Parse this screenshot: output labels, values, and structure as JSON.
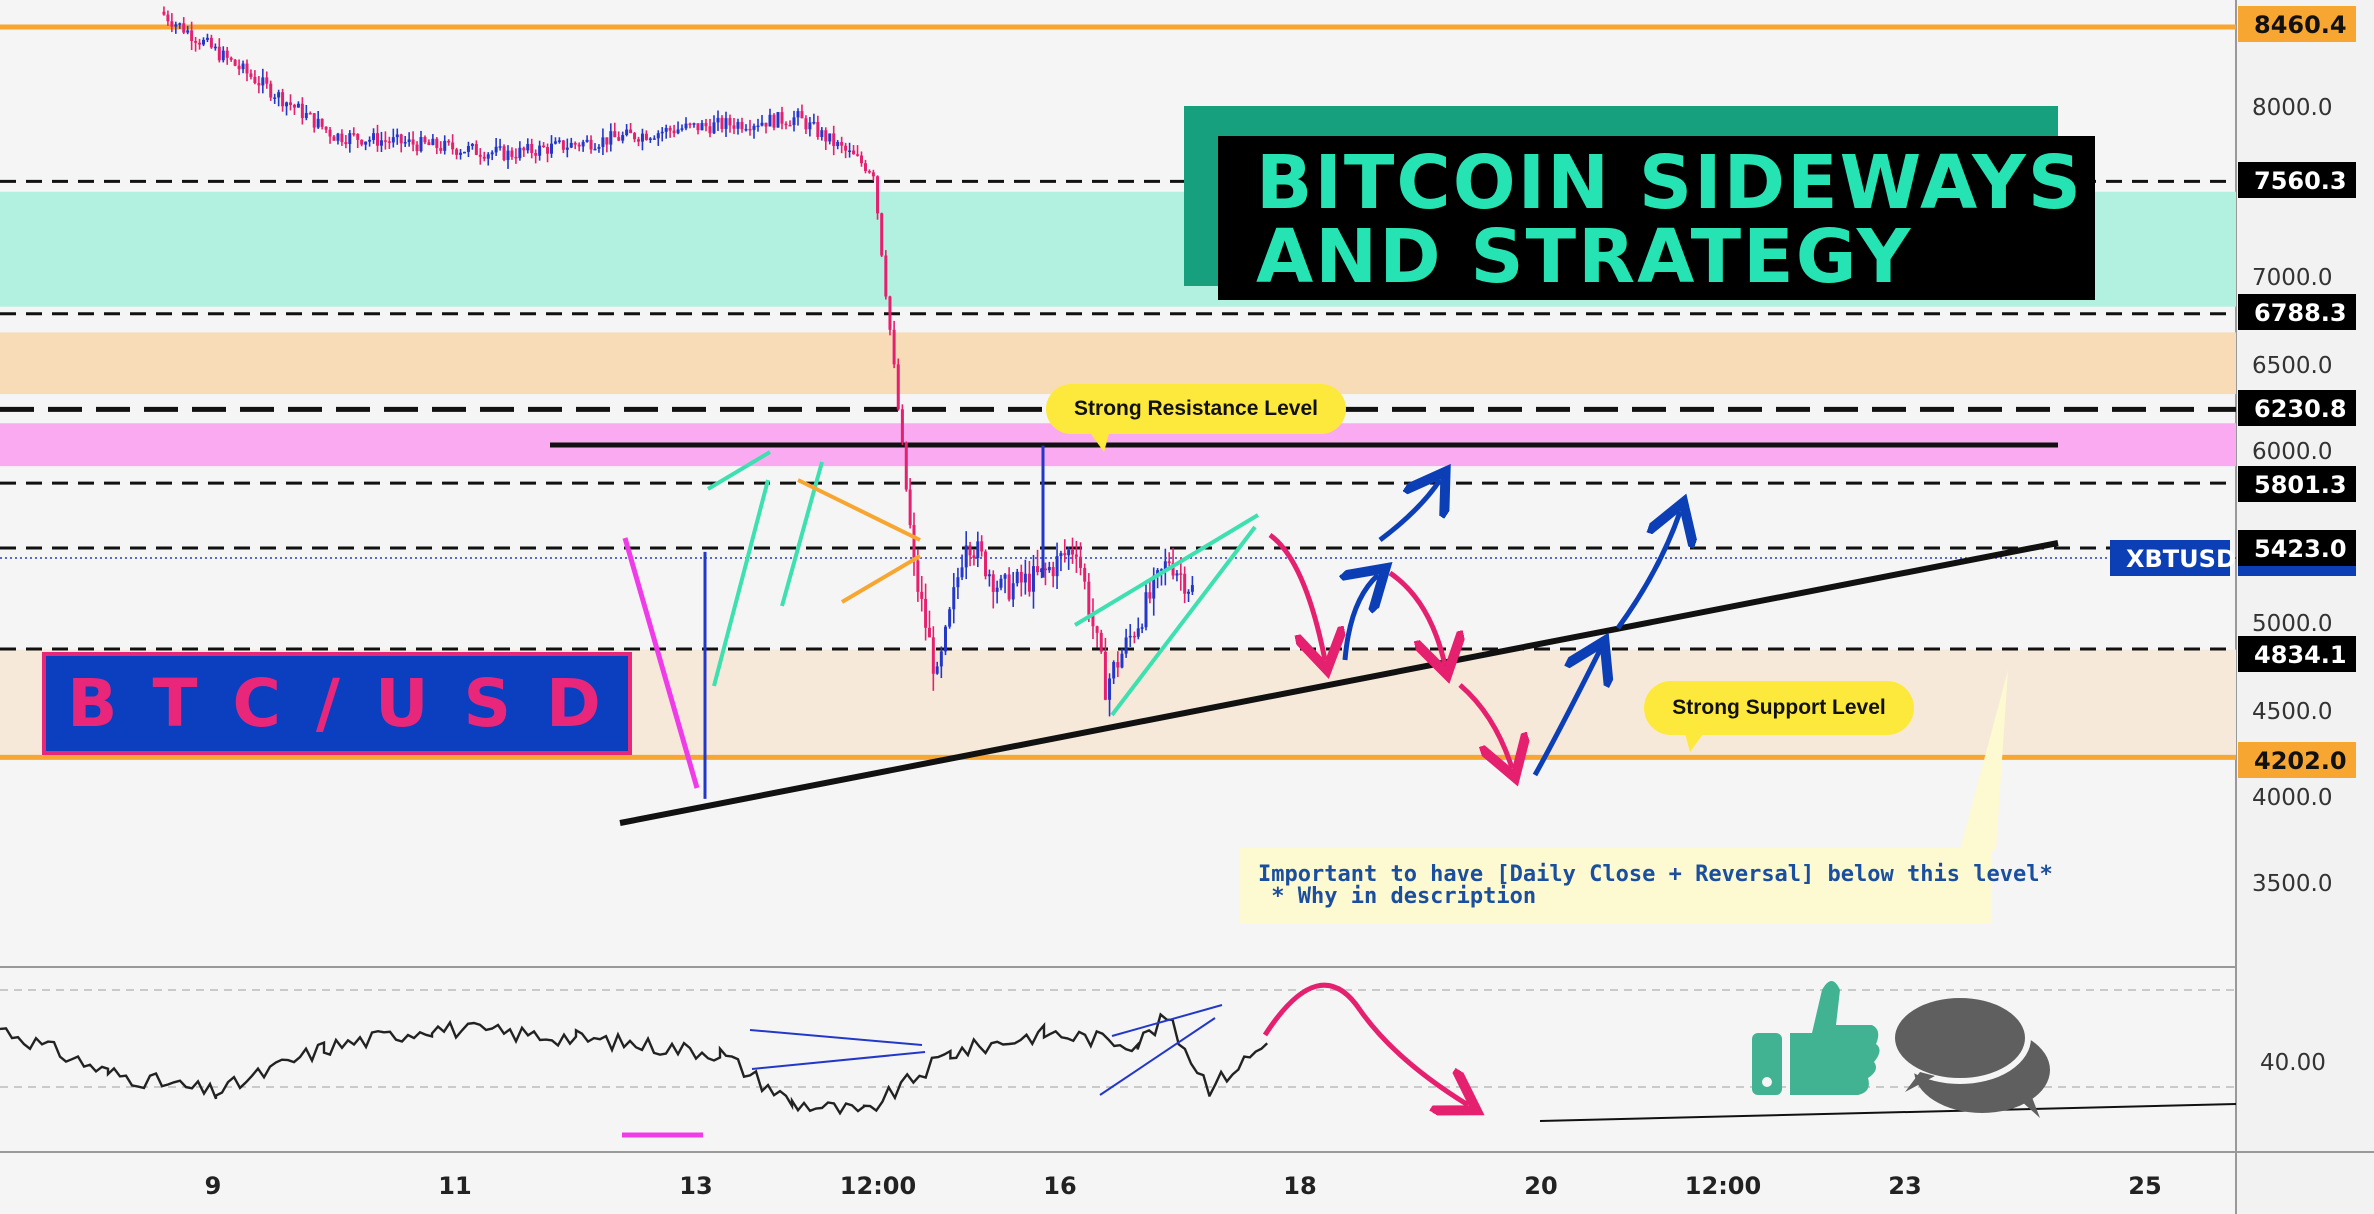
{
  "title": {
    "line1": "BITCOIN SIDEWAYS",
    "line2": "AND STRATEGY"
  },
  "pair_label": "B T C / U S D",
  "annotations": {
    "resistance": "Strong Resistance Level",
    "support": "Strong Support Level",
    "note_line1": "Important to have [Daily Close + Reversal] below this level*",
    "note_line2": " * Why in description"
  },
  "colors": {
    "background": "#f5f5f5",
    "up_candle": "#2438c8",
    "down_candle": "#e5206e",
    "green_zone": "#b2f0df",
    "orange_zone": "#f8dcb8",
    "pink_zone": "#f9aaf0",
    "support_zone": "#f6e9da",
    "orange_level": "#f7a731",
    "title_bg": "#000000",
    "title_text": "#26e3b3",
    "title_shadow": "#16a07e",
    "pair_bg": "#0b3fc0",
    "pair_text": "#e8267a",
    "bubble": "#fde93b",
    "ticker_box": "#0c3fb5",
    "arrow_pink": "#e5206e",
    "arrow_blue": "#0c3fb5",
    "thumb": "#41b393",
    "chat": "#5f5f5f"
  },
  "icons": [
    "thumbs-up-icon",
    "chat-bubbles-icon"
  ],
  "chart_data": {
    "type": "candlestick",
    "symbol": "XBTUSD",
    "y_range": [
      3000,
      8550
    ],
    "y_ticks": [
      "8000.0",
      "7000.0",
      "6500.0",
      "6000.0",
      "5000.0",
      "4500.0",
      "4000.0",
      "3500.0"
    ],
    "x_labels": [
      "9",
      "11",
      "13",
      "12:00",
      "16",
      "18",
      "20",
      "12:00",
      "23",
      "25"
    ],
    "levels": [
      {
        "label": "8460.4",
        "style": "orange"
      },
      {
        "label": "7560.3",
        "style": "dashed"
      },
      {
        "label": "6788.3",
        "style": "dashed"
      },
      {
        "label": "6230.8",
        "style": "dashed-heavy"
      },
      {
        "label": "5801.3",
        "style": "dashed"
      },
      {
        "label": "5423.0",
        "style": "current"
      },
      {
        "label": "4834.1",
        "style": "dashed"
      },
      {
        "label": "4202.0",
        "style": "orange"
      }
    ],
    "current_price_label": "5423.0",
    "zones": [
      {
        "from": 6830,
        "to": 7500,
        "color": "green"
      },
      {
        "from": 6320,
        "to": 6680,
        "color": "orange"
      },
      {
        "from": 5900,
        "to": 6150,
        "color": "pink"
      },
      {
        "from": 4200,
        "to": 4830,
        "color": "support"
      }
    ],
    "price_path": [
      [
        0.0,
        8550
      ],
      [
        3.0,
        7830
      ],
      [
        6.0,
        7720
      ],
      [
        9.0,
        7870
      ],
      [
        11.0,
        7930
      ],
      [
        12.3,
        7620
      ],
      [
        12.8,
        6000
      ],
      [
        13.0,
        5300
      ],
      [
        13.4,
        4650
      ],
      [
        13.9,
        5500
      ],
      [
        14.5,
        5180
      ],
      [
        15.2,
        5260
      ],
      [
        15.8,
        5440
      ],
      [
        16.3,
        4620
      ],
      [
        16.8,
        4950
      ],
      [
        17.4,
        5360
      ],
      [
        17.8,
        5180
      ]
    ],
    "indicator": {
      "tick_label": "40.00",
      "path": [
        [
          0.0,
          47
        ],
        [
          1.5,
          38
        ],
        [
          3.0,
          34
        ],
        [
          4.5,
          43
        ],
        [
          6.0,
          47
        ],
        [
          8.0,
          45
        ],
        [
          10.0,
          42
        ],
        [
          11.0,
          32
        ],
        [
          12.0,
          30
        ],
        [
          13.2,
          42
        ],
        [
          14.5,
          46
        ],
        [
          15.8,
          44
        ],
        [
          16.2,
          49
        ],
        [
          16.8,
          35
        ],
        [
          17.6,
          44
        ]
      ]
    }
  }
}
